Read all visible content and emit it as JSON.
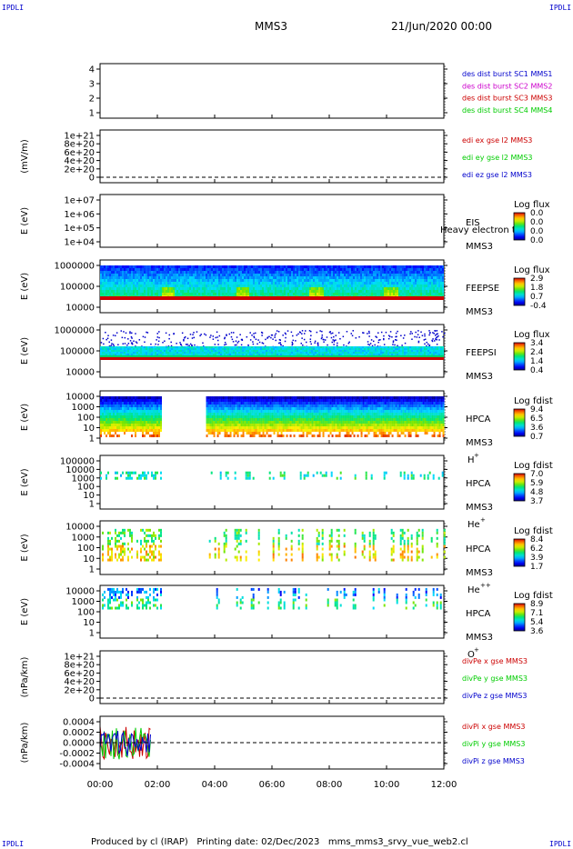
{
  "header": {
    "corner_label": "IPDLI",
    "mission": "MMS3",
    "date": "21/Jun/2020 00:00"
  },
  "footer": {
    "produced_by": "Produced by cl (IRAP)",
    "printing_date": "Printing date: 02/Dec/2023",
    "script": "mms_mms3_srvy_vue_web2.cl"
  },
  "chart_data": {
    "type": "heatmap",
    "x_ticks": [
      "00:00",
      "02:00",
      "04:00",
      "06:00",
      "08:00",
      "10:00",
      "12:00"
    ],
    "x_range_hours": [
      0,
      12
    ],
    "colors": {
      "blue": "#0000cc",
      "magenta": "#cc00cc",
      "red": "#cc0000",
      "green": "#00cc00"
    },
    "panels": [
      {
        "id": "des-dist",
        "ylabel": "",
        "yticks": [
          "4",
          "3",
          "2",
          "1"
        ],
        "right_labels": [
          {
            "text": "des dist burst SC1 MMS1",
            "color": "#0000cc"
          },
          {
            "text": "des dist burst SC2 MMS2",
            "color": "#cc00cc"
          },
          {
            "text": "des dist burst SC3 MMS3",
            "color": "#cc0000"
          },
          {
            "text": "des dist burst SC4 MMS4",
            "color": "#00cc00"
          }
        ]
      },
      {
        "id": "edi-e",
        "ylabel": "(mV/m)",
        "yticks": [
          "1e+21",
          "8e+20",
          "6e+20",
          "4e+20",
          "2e+20",
          "0"
        ],
        "zero_line": true,
        "right_labels": [
          {
            "text": "edi ex gse l2 MMS3",
            "color": "#cc0000"
          },
          {
            "text": "edi ey gse l2 MMS3",
            "color": "#00cc00"
          },
          {
            "text": "edi ez gse l2 MMS3",
            "color": "#0000cc"
          }
        ]
      },
      {
        "id": "eis",
        "ylabel": "E (eV)",
        "yticks": [
          "1e+07",
          "1e+06",
          "1e+05",
          "1e+04"
        ],
        "instrument": "EIS",
        "instrument_sub": "MMS3",
        "overflow_label": "Heavy electron to",
        "colorbar": {
          "title": "Log flux",
          "ticks": [
            "0.0",
            "0.0",
            "0.0",
            "0.0"
          ]
        }
      },
      {
        "id": "feepse",
        "ylabel": "E (eV)",
        "yticks": [
          "1000000",
          "100000",
          "10000"
        ],
        "instrument": "FEEPSE",
        "instrument_sub": "MMS3",
        "colorbar": {
          "title": "Log flux",
          "ticks": [
            "2.9",
            "1.8",
            "0.7",
            "-0.4"
          ]
        }
      },
      {
        "id": "feepsi",
        "ylabel": "E (eV)",
        "yticks": [
          "1000000",
          "100000",
          "10000"
        ],
        "instrument": "FEEPSI",
        "instrument_sub": "MMS3",
        "colorbar": {
          "title": "Log flux",
          "ticks": [
            "3.4",
            "2.4",
            "1.4",
            "0.4"
          ]
        }
      },
      {
        "id": "hpca-h",
        "ylabel": "E (eV)",
        "yticks": [
          "10000",
          "1000",
          "100",
          "10",
          "1"
        ],
        "instrument": "HPCA",
        "instrument_sub": "MMS3",
        "species": "H",
        "species_charge": "+",
        "colorbar": {
          "title": "Log fdist",
          "ticks": [
            "9.4",
            "6.5",
            "3.6",
            "0.7"
          ]
        }
      },
      {
        "id": "hpca-he",
        "ylabel": "E (eV)",
        "yticks": [
          "100000",
          "10000",
          "1000",
          "100",
          "10",
          "1"
        ],
        "instrument": "HPCA",
        "instrument_sub": "MMS3",
        "species": "He",
        "species_charge": "+",
        "colorbar": {
          "title": "Log fdist",
          "ticks": [
            "7.0",
            "5.9",
            "4.8",
            "3.7"
          ]
        }
      },
      {
        "id": "hpca-he2",
        "ylabel": "E (eV)",
        "yticks": [
          "10000",
          "1000",
          "100",
          "10",
          "1"
        ],
        "instrument": "HPCA",
        "instrument_sub": "MMS3",
        "species": "He",
        "species_charge": "++",
        "colorbar": {
          "title": "Log fdist",
          "ticks": [
            "8.4",
            "6.2",
            "3.9",
            "1.7"
          ]
        }
      },
      {
        "id": "hpca-o",
        "ylabel": "E (eV)",
        "yticks": [
          "10000",
          "1000",
          "100",
          "10",
          "1"
        ],
        "instrument": "HPCA",
        "instrument_sub": "MMS3",
        "species": "O",
        "species_charge": "+",
        "colorbar": {
          "title": "Log fdist",
          "ticks": [
            "8.9",
            "7.1",
            "5.4",
            "3.6"
          ]
        }
      },
      {
        "id": "divpe",
        "ylabel": "(nPa/km)",
        "yticks": [
          "1e+21",
          "8e+20",
          "6e+20",
          "4e+20",
          "2e+20",
          "0"
        ],
        "zero_line": true,
        "right_labels": [
          {
            "text": "divPe x gse MMS3",
            "color": "#cc0000"
          },
          {
            "text": "divPe y gse MMS3",
            "color": "#00cc00"
          },
          {
            "text": "divPe z gse MMS3",
            "color": "#0000cc"
          }
        ]
      },
      {
        "id": "divpi",
        "ylabel": "(nPa/km)",
        "yticks": [
          "0.0004",
          "0.0002",
          "0.0000",
          "-0.0002",
          "-0.0004"
        ],
        "ylim": [
          -0.0004,
          0.0004
        ],
        "zero_line": true,
        "right_labels": [
          {
            "text": "divPi x gse MMS3",
            "color": "#cc0000"
          },
          {
            "text": "divPi y gse MMS3",
            "color": "#00cc00"
          },
          {
            "text": "divPi z gse MMS3",
            "color": "#0000cc"
          }
        ]
      }
    ]
  }
}
